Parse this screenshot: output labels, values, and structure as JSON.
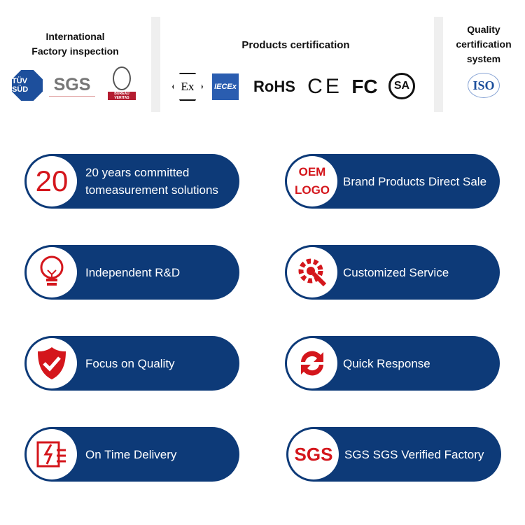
{
  "certs": {
    "factory": {
      "title_line1": "International",
      "title_line2": "Factory inspection",
      "logos": [
        "TÜV SÜD",
        "SGS",
        "BUREAU VERITAS"
      ]
    },
    "products": {
      "title": "Products certification",
      "logos": [
        "Ex",
        "IECEx",
        "RoHS",
        "CE",
        "FC",
        "SA"
      ]
    },
    "quality": {
      "title_line1": "Quality",
      "title_line2": "certification",
      "title_line3": "system",
      "logos": [
        "ISO"
      ]
    }
  },
  "features": [
    {
      "icon": "twenty-icon",
      "icon_text": "20",
      "line1": "20 years committed",
      "line2": "tomeasurement solutions"
    },
    {
      "icon": "oem-logo-icon",
      "icon_text1": "OEM",
      "icon_text2": "LOGO",
      "line1": "Brand Products Direct Sale"
    },
    {
      "icon": "lightbulb-icon",
      "line1": "Independent R&D"
    },
    {
      "icon": "gear-wrench-icon",
      "line1": "Customized Service"
    },
    {
      "icon": "shield-check-icon",
      "line1": "Focus on Quality"
    },
    {
      "icon": "refresh-icon",
      "line1": "Quick Response"
    },
    {
      "icon": "delivery-icon",
      "line1": "On Time Delivery"
    },
    {
      "icon": "sgs-icon",
      "icon_text": "SGS",
      "line1": "SGS SGS Verified Factory"
    }
  ],
  "colors": {
    "pill": "#0d3a78",
    "accent": "#d4161c"
  }
}
